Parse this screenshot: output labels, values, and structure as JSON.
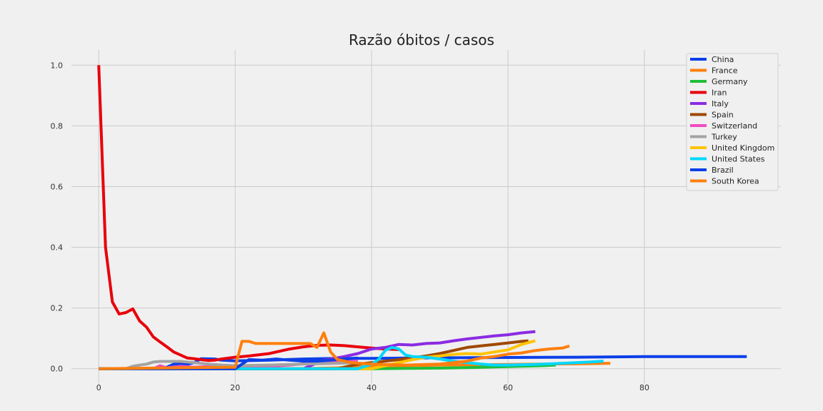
{
  "chart_data": {
    "type": "line",
    "title": "Razão óbitos / casos",
    "xlabel": "",
    "ylabel": "",
    "xlim": [
      -4,
      100
    ],
    "ylim": [
      -0.05,
      1.05
    ],
    "x_ticks": [
      0,
      20,
      40,
      60,
      80
    ],
    "y_ticks": [
      0.0,
      0.2,
      0.4,
      0.6,
      0.8,
      1.0
    ],
    "x_tick_labels": [
      "0",
      "20",
      "40",
      "60",
      "80"
    ],
    "y_tick_labels": [
      "0.0",
      "0.2",
      "0.4",
      "0.6",
      "0.8",
      "1.0"
    ],
    "grid": true,
    "legend_position": "top-right",
    "series": [
      {
        "name": "China",
        "color": "#0b3fe8",
        "points": [
          [
            0,
            0
          ],
          [
            8,
            0
          ],
          [
            10,
            0.005
          ],
          [
            11,
            0.015
          ],
          [
            13,
            0.015
          ],
          [
            14,
            0.02
          ],
          [
            15,
            0.033
          ],
          [
            17,
            0.032
          ],
          [
            18,
            0.028
          ],
          [
            20,
            0.026
          ],
          [
            25,
            0.028
          ],
          [
            30,
            0.032
          ],
          [
            35,
            0.034
          ],
          [
            40,
            0.034
          ],
          [
            50,
            0.036
          ],
          [
            60,
            0.037
          ],
          [
            70,
            0.038
          ],
          [
            80,
            0.04
          ],
          [
            95,
            0.04
          ]
        ]
      },
      {
        "name": "France",
        "color": "#ff7f0e",
        "points": [
          [
            0,
            0
          ],
          [
            30,
            0
          ],
          [
            35,
            0.003
          ],
          [
            40,
            0.008
          ],
          [
            45,
            0.01
          ],
          [
            50,
            0.012
          ],
          [
            55,
            0.013
          ],
          [
            60,
            0.014
          ],
          [
            65,
            0.015
          ],
          [
            70,
            0.016
          ],
          [
            75,
            0.018
          ]
        ]
      },
      {
        "name": "Germany",
        "color": "#1fbf3a",
        "points": [
          [
            0,
            0
          ],
          [
            40,
            0
          ],
          [
            45,
            0.001
          ],
          [
            50,
            0.002
          ],
          [
            55,
            0.004
          ],
          [
            60,
            0.007
          ],
          [
            65,
            0.01
          ],
          [
            67,
            0.012
          ]
        ]
      },
      {
        "name": "Iran",
        "color": "#e8000b",
        "points": [
          [
            0,
            1.0
          ],
          [
            1,
            0.4
          ],
          [
            2,
            0.22
          ],
          [
            3,
            0.18
          ],
          [
            4,
            0.185
          ],
          [
            5,
            0.197
          ],
          [
            6,
            0.157
          ],
          [
            7,
            0.137
          ],
          [
            8,
            0.105
          ],
          [
            9,
            0.088
          ],
          [
            10,
            0.072
          ],
          [
            11,
            0.055
          ],
          [
            12,
            0.045
          ],
          [
            13,
            0.035
          ],
          [
            14,
            0.033
          ],
          [
            15,
            0.03
          ],
          [
            16,
            0.027
          ],
          [
            17,
            0.028
          ],
          [
            18,
            0.032
          ],
          [
            20,
            0.038
          ],
          [
            22,
            0.042
          ],
          [
            25,
            0.05
          ],
          [
            28,
            0.065
          ],
          [
            30,
            0.072
          ],
          [
            32,
            0.077
          ],
          [
            34,
            0.078
          ],
          [
            36,
            0.076
          ],
          [
            38,
            0.072
          ],
          [
            40,
            0.068
          ],
          [
            42,
            0.065
          ],
          [
            44,
            0.063
          ]
        ]
      },
      {
        "name": "Italy",
        "color": "#8b2be2",
        "points": [
          [
            0,
            0
          ],
          [
            30,
            0
          ],
          [
            33,
            0.028
          ],
          [
            36,
            0.04
          ],
          [
            38,
            0.05
          ],
          [
            40,
            0.065
          ],
          [
            42,
            0.07
          ],
          [
            44,
            0.08
          ],
          [
            46,
            0.078
          ],
          [
            48,
            0.083
          ],
          [
            50,
            0.085
          ],
          [
            52,
            0.092
          ],
          [
            54,
            0.098
          ],
          [
            56,
            0.103
          ],
          [
            58,
            0.108
          ],
          [
            60,
            0.112
          ],
          [
            62,
            0.118
          ],
          [
            64,
            0.122
          ]
        ]
      },
      {
        "name": "Spain",
        "color": "#9f4800",
        "points": [
          [
            0,
            0
          ],
          [
            35,
            0
          ],
          [
            38,
            0.015
          ],
          [
            40,
            0.02
          ],
          [
            42,
            0.025
          ],
          [
            44,
            0.03
          ],
          [
            46,
            0.036
          ],
          [
            48,
            0.042
          ],
          [
            50,
            0.05
          ],
          [
            52,
            0.06
          ],
          [
            54,
            0.07
          ],
          [
            56,
            0.075
          ],
          [
            58,
            0.08
          ],
          [
            60,
            0.085
          ],
          [
            62,
            0.09
          ],
          [
            63,
            0.092
          ]
        ]
      },
      {
        "name": "Switzerland",
        "color": "#f14cc1",
        "points": [
          [
            0,
            0
          ],
          [
            8,
            0
          ],
          [
            9,
            0.01
          ],
          [
            10,
            0.003
          ],
          [
            12,
            0.008
          ],
          [
            14,
            0.005
          ],
          [
            16,
            0.007
          ],
          [
            18,
            0.006
          ],
          [
            20,
            0.005
          ],
          [
            22,
            0.006
          ],
          [
            25,
            0.008
          ],
          [
            28,
            0.012
          ],
          [
            30,
            0.016
          ],
          [
            32,
            0.02
          ],
          [
            34,
            0.024
          ],
          [
            36,
            0.025
          ],
          [
            38,
            0.026
          ]
        ]
      },
      {
        "name": "Turkey",
        "color": "#a3a3a3",
        "points": [
          [
            0,
            0
          ],
          [
            4,
            0
          ],
          [
            5,
            0.008
          ],
          [
            6,
            0.012
          ],
          [
            7,
            0.015
          ],
          [
            8,
            0.022
          ],
          [
            9,
            0.024
          ],
          [
            12,
            0.024
          ],
          [
            14,
            0.02
          ],
          [
            16,
            0.015
          ],
          [
            18,
            0.012
          ],
          [
            20,
            0.01
          ],
          [
            25,
            0.012
          ],
          [
            30,
            0.015
          ],
          [
            35,
            0.018
          ],
          [
            38,
            0.02
          ]
        ]
      },
      {
        "name": "United Kingdom",
        "color": "#ffc400",
        "points": [
          [
            0,
            0
          ],
          [
            40,
            0
          ],
          [
            42,
            0.01
          ],
          [
            44,
            0.02
          ],
          [
            46,
            0.03
          ],
          [
            48,
            0.038
          ],
          [
            50,
            0.042
          ],
          [
            52,
            0.047
          ],
          [
            54,
            0.05
          ],
          [
            56,
            0.048
          ],
          [
            58,
            0.055
          ],
          [
            60,
            0.062
          ],
          [
            62,
            0.08
          ],
          [
            64,
            0.092
          ]
        ]
      },
      {
        "name": "United States",
        "color": "#00d7ff",
        "points": [
          [
            0,
            0
          ],
          [
            38,
            0
          ],
          [
            40,
            0.015
          ],
          [
            41,
            0.03
          ],
          [
            42,
            0.06
          ],
          [
            43,
            0.07
          ],
          [
            44,
            0.065
          ],
          [
            45,
            0.045
          ],
          [
            46,
            0.04
          ],
          [
            48,
            0.038
          ],
          [
            50,
            0.032
          ],
          [
            52,
            0.025
          ],
          [
            54,
            0.02
          ],
          [
            56,
            0.015
          ],
          [
            58,
            0.012
          ],
          [
            60,
            0.012
          ],
          [
            64,
            0.014
          ],
          [
            68,
            0.018
          ],
          [
            72,
            0.022
          ],
          [
            74,
            0.025
          ]
        ]
      },
      {
        "name": "Brazil",
        "color": "#0b3fe8",
        "points": [
          [
            0,
            0
          ],
          [
            20,
            0
          ],
          [
            21,
            0.015
          ],
          [
            22,
            0.03
          ],
          [
            24,
            0.028
          ],
          [
            26,
            0.032
          ],
          [
            28,
            0.028
          ],
          [
            30,
            0.025
          ],
          [
            32,
            0.025
          ],
          [
            34,
            0.028
          ],
          [
            36,
            0.032
          ],
          [
            38,
            0.035
          ]
        ]
      },
      {
        "name": "South Korea",
        "color": "#ff7f0e",
        "points": [
          [
            0,
            0
          ],
          [
            20,
            0.005
          ],
          [
            21,
            0.09
          ],
          [
            22,
            0.09
          ],
          [
            23,
            0.083
          ],
          [
            31,
            0.083
          ],
          [
            32,
            0.07
          ],
          [
            33,
            0.118
          ],
          [
            34,
            0.055
          ],
          [
            35,
            0.03
          ],
          [
            37,
            0.02
          ],
          [
            40,
            0.015
          ],
          [
            45,
            0.012
          ],
          [
            50,
            0.015
          ],
          [
            52,
            0.02
          ],
          [
            54,
            0.025
          ],
          [
            56,
            0.035
          ],
          [
            58,
            0.04
          ],
          [
            60,
            0.048
          ],
          [
            62,
            0.052
          ],
          [
            64,
            0.06
          ],
          [
            66,
            0.065
          ],
          [
            68,
            0.068
          ],
          [
            69,
            0.075
          ]
        ]
      }
    ]
  }
}
